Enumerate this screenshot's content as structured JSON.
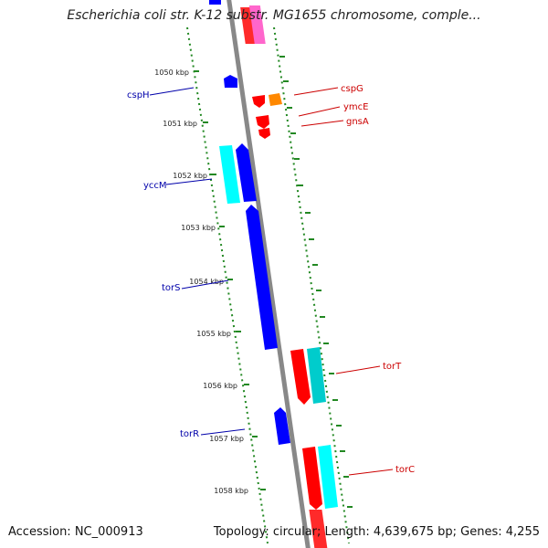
{
  "title": "Escherichia coli str. K-12 substr. MG1655 chromosome, comple...",
  "footer": {
    "accession": "Accession: NC_000913",
    "stats": "Topology: circular; Length: 4,639,675 bp; Genes: 4,255"
  },
  "ticks": [
    {
      "label": "1050 kbp"
    },
    {
      "label": "1051 kbp"
    },
    {
      "label": "1052 kbp"
    },
    {
      "label": "1053 kbp"
    },
    {
      "label": "1054 kbp"
    },
    {
      "label": "1055 kbp"
    },
    {
      "label": "1056 kbp"
    },
    {
      "label": "1057 kbp"
    },
    {
      "label": "1058 kbp"
    }
  ],
  "genes_left": [
    {
      "name": "cspH"
    },
    {
      "name": "yccM"
    },
    {
      "name": "torS"
    },
    {
      "name": "torR"
    }
  ],
  "genes_right": [
    {
      "name": "cspG"
    },
    {
      "name": "ymcE"
    },
    {
      "name": "gnsA"
    },
    {
      "name": "torT"
    },
    {
      "name": "torC"
    }
  ],
  "colors": {
    "backbone": "#888888",
    "forward_cds": "#ff0000",
    "reverse_cds": "#0000ff",
    "forward_other": "#00cccc",
    "reverse_other": "#00ffff",
    "highlight": "#ff8800",
    "pink": "#ff66cc",
    "tick": "#228822"
  }
}
